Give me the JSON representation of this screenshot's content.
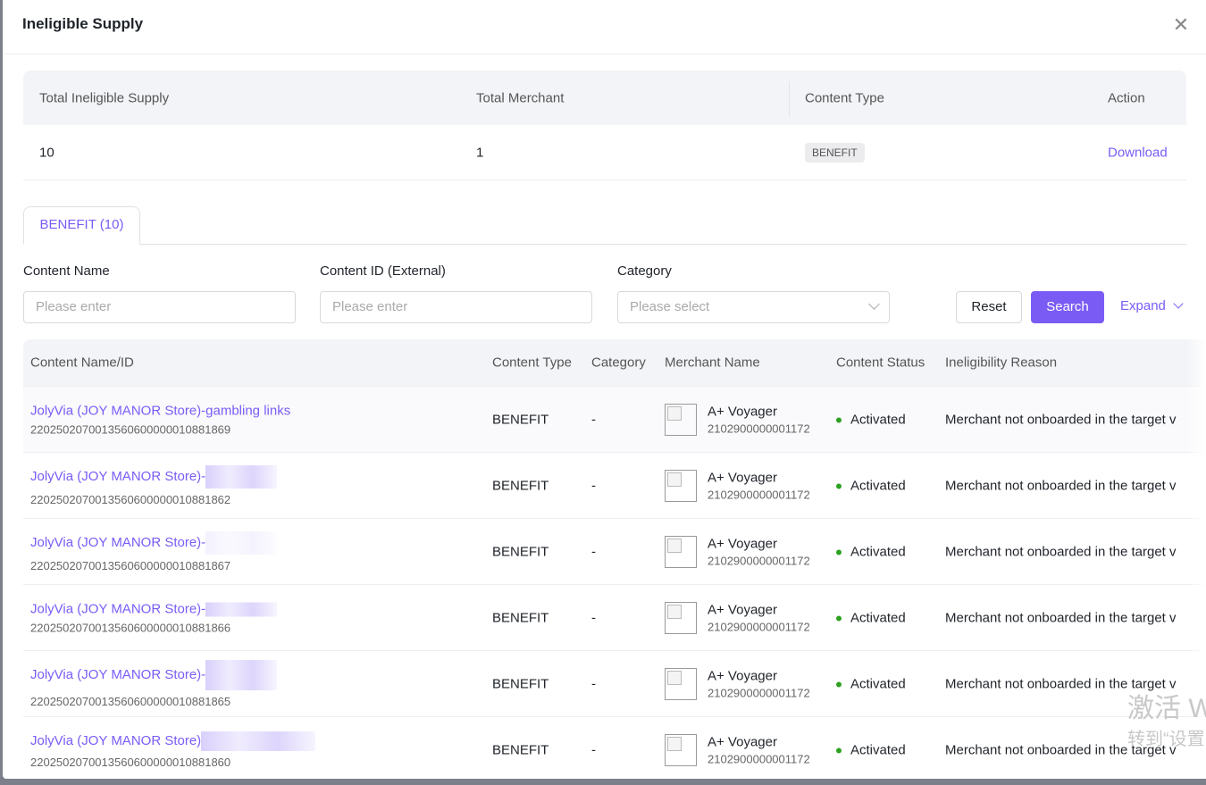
{
  "modal": {
    "title": "Ineligible Supply"
  },
  "summary": {
    "headers": [
      "Total Ineligible Supply",
      "Total Merchant",
      "Content Type",
      "Action"
    ],
    "total_ineligible_supply": "10",
    "total_merchant": "1",
    "content_type": "BENEFIT",
    "action": "Download"
  },
  "tabs": [
    {
      "label": "BENEFIT (10)"
    }
  ],
  "filters": {
    "content_name": {
      "label": "Content Name",
      "placeholder": "Please enter"
    },
    "content_id": {
      "label": "Content ID (External)",
      "placeholder": "Please enter"
    },
    "category": {
      "label": "Category",
      "placeholder": "Please select"
    },
    "reset": "Reset",
    "search": "Search",
    "expand": "Expand"
  },
  "table": {
    "headers": [
      "Content Name/ID",
      "Content Type",
      "Category",
      "Merchant Name",
      "Content Status",
      "Ineligibility Reason"
    ],
    "rows": [
      {
        "name": "JolyVia (JOY MANOR Store)-gambling links",
        "id": "2202502070013560600000010881869",
        "type": "BENEFIT",
        "category": "-",
        "merchant": "A+ Voyager",
        "merchant_id": "2102900000001172",
        "status": "Activated",
        "reason": "Merchant not onboarded in the target v"
      },
      {
        "name": "JolyVia (JOY MANOR Store)-",
        "id": "2202502070013560600000010881862",
        "type": "BENEFIT",
        "category": "-",
        "merchant": "A+ Voyager",
        "merchant_id": "2102900000001172",
        "status": "Activated",
        "reason": "Merchant not onboarded in the target v"
      },
      {
        "name": "JolyVia (JOY MANOR Store)-",
        "id": "2202502070013560600000010881867",
        "type": "BENEFIT",
        "category": "-",
        "merchant": "A+ Voyager",
        "merchant_id": "2102900000001172",
        "status": "Activated",
        "reason": "Merchant not onboarded in the target v"
      },
      {
        "name": "JolyVia (JOY MANOR Store)-",
        "id": "2202502070013560600000010881866",
        "type": "BENEFIT",
        "category": "-",
        "merchant": "A+ Voyager",
        "merchant_id": "2102900000001172",
        "status": "Activated",
        "reason": "Merchant not onboarded in the target v"
      },
      {
        "name": "JolyVia (JOY MANOR Store)-",
        "id": "2202502070013560600000010881865",
        "type": "BENEFIT",
        "category": "-",
        "merchant": "A+ Voyager",
        "merchant_id": "2102900000001172",
        "status": "Activated",
        "reason": "Merchant not onboarded in the target v"
      },
      {
        "name": "JolyVia (JOY MANOR Store)",
        "id": "2202502070013560600000010881860",
        "type": "BENEFIT",
        "category": "-",
        "merchant": "A+ Voyager",
        "merchant_id": "2102900000001172",
        "status": "Activated",
        "reason": "Merchant not onboarded in the target v"
      }
    ]
  },
  "watermark": {
    "line1": "激活 W",
    "line2": "转到“设置"
  }
}
